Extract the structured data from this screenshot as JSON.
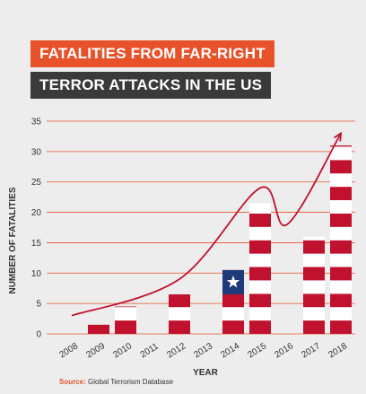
{
  "title": {
    "line1": "FATALITIES FROM FAR-RIGHT",
    "line2": "TERROR ATTACKS IN THE US"
  },
  "source": {
    "label": "Source:",
    "text": "Global Terrorism Database"
  },
  "colors": {
    "accent": "#e8522a",
    "title_bg_line2": "#3a3a3a",
    "bar_red": "#c0112e",
    "bar_white": "#ffffff",
    "canton_blue": "#1f3a7a",
    "grid": "#e8522a",
    "trend": "#c0112e"
  },
  "chart_data": {
    "type": "bar",
    "categories": [
      "2008",
      "2009",
      "2010",
      "2011",
      "2012",
      "2013",
      "2014",
      "2015",
      "2016",
      "2017",
      "2018"
    ],
    "values": [
      0,
      1.5,
      4.5,
      0,
      6.5,
      0,
      10.5,
      21.5,
      0,
      16,
      31
    ],
    "xlabel": "YEAR",
    "ylabel": "NUMBER OF FATALITIES",
    "ylim": [
      0,
      35
    ],
    "yticks": [
      0,
      5,
      10,
      15,
      20,
      25,
      30,
      35
    ],
    "grid": true,
    "bar_style": "US flag stripes (red and white); 2014 bar topped with a blue canton and a white star",
    "trend_line": {
      "style": "smooth curve with arrowhead",
      "x": [
        "2008",
        "2012",
        "2015",
        "2016",
        "2018"
      ],
      "y": [
        3,
        9,
        24,
        18,
        33
      ]
    }
  }
}
